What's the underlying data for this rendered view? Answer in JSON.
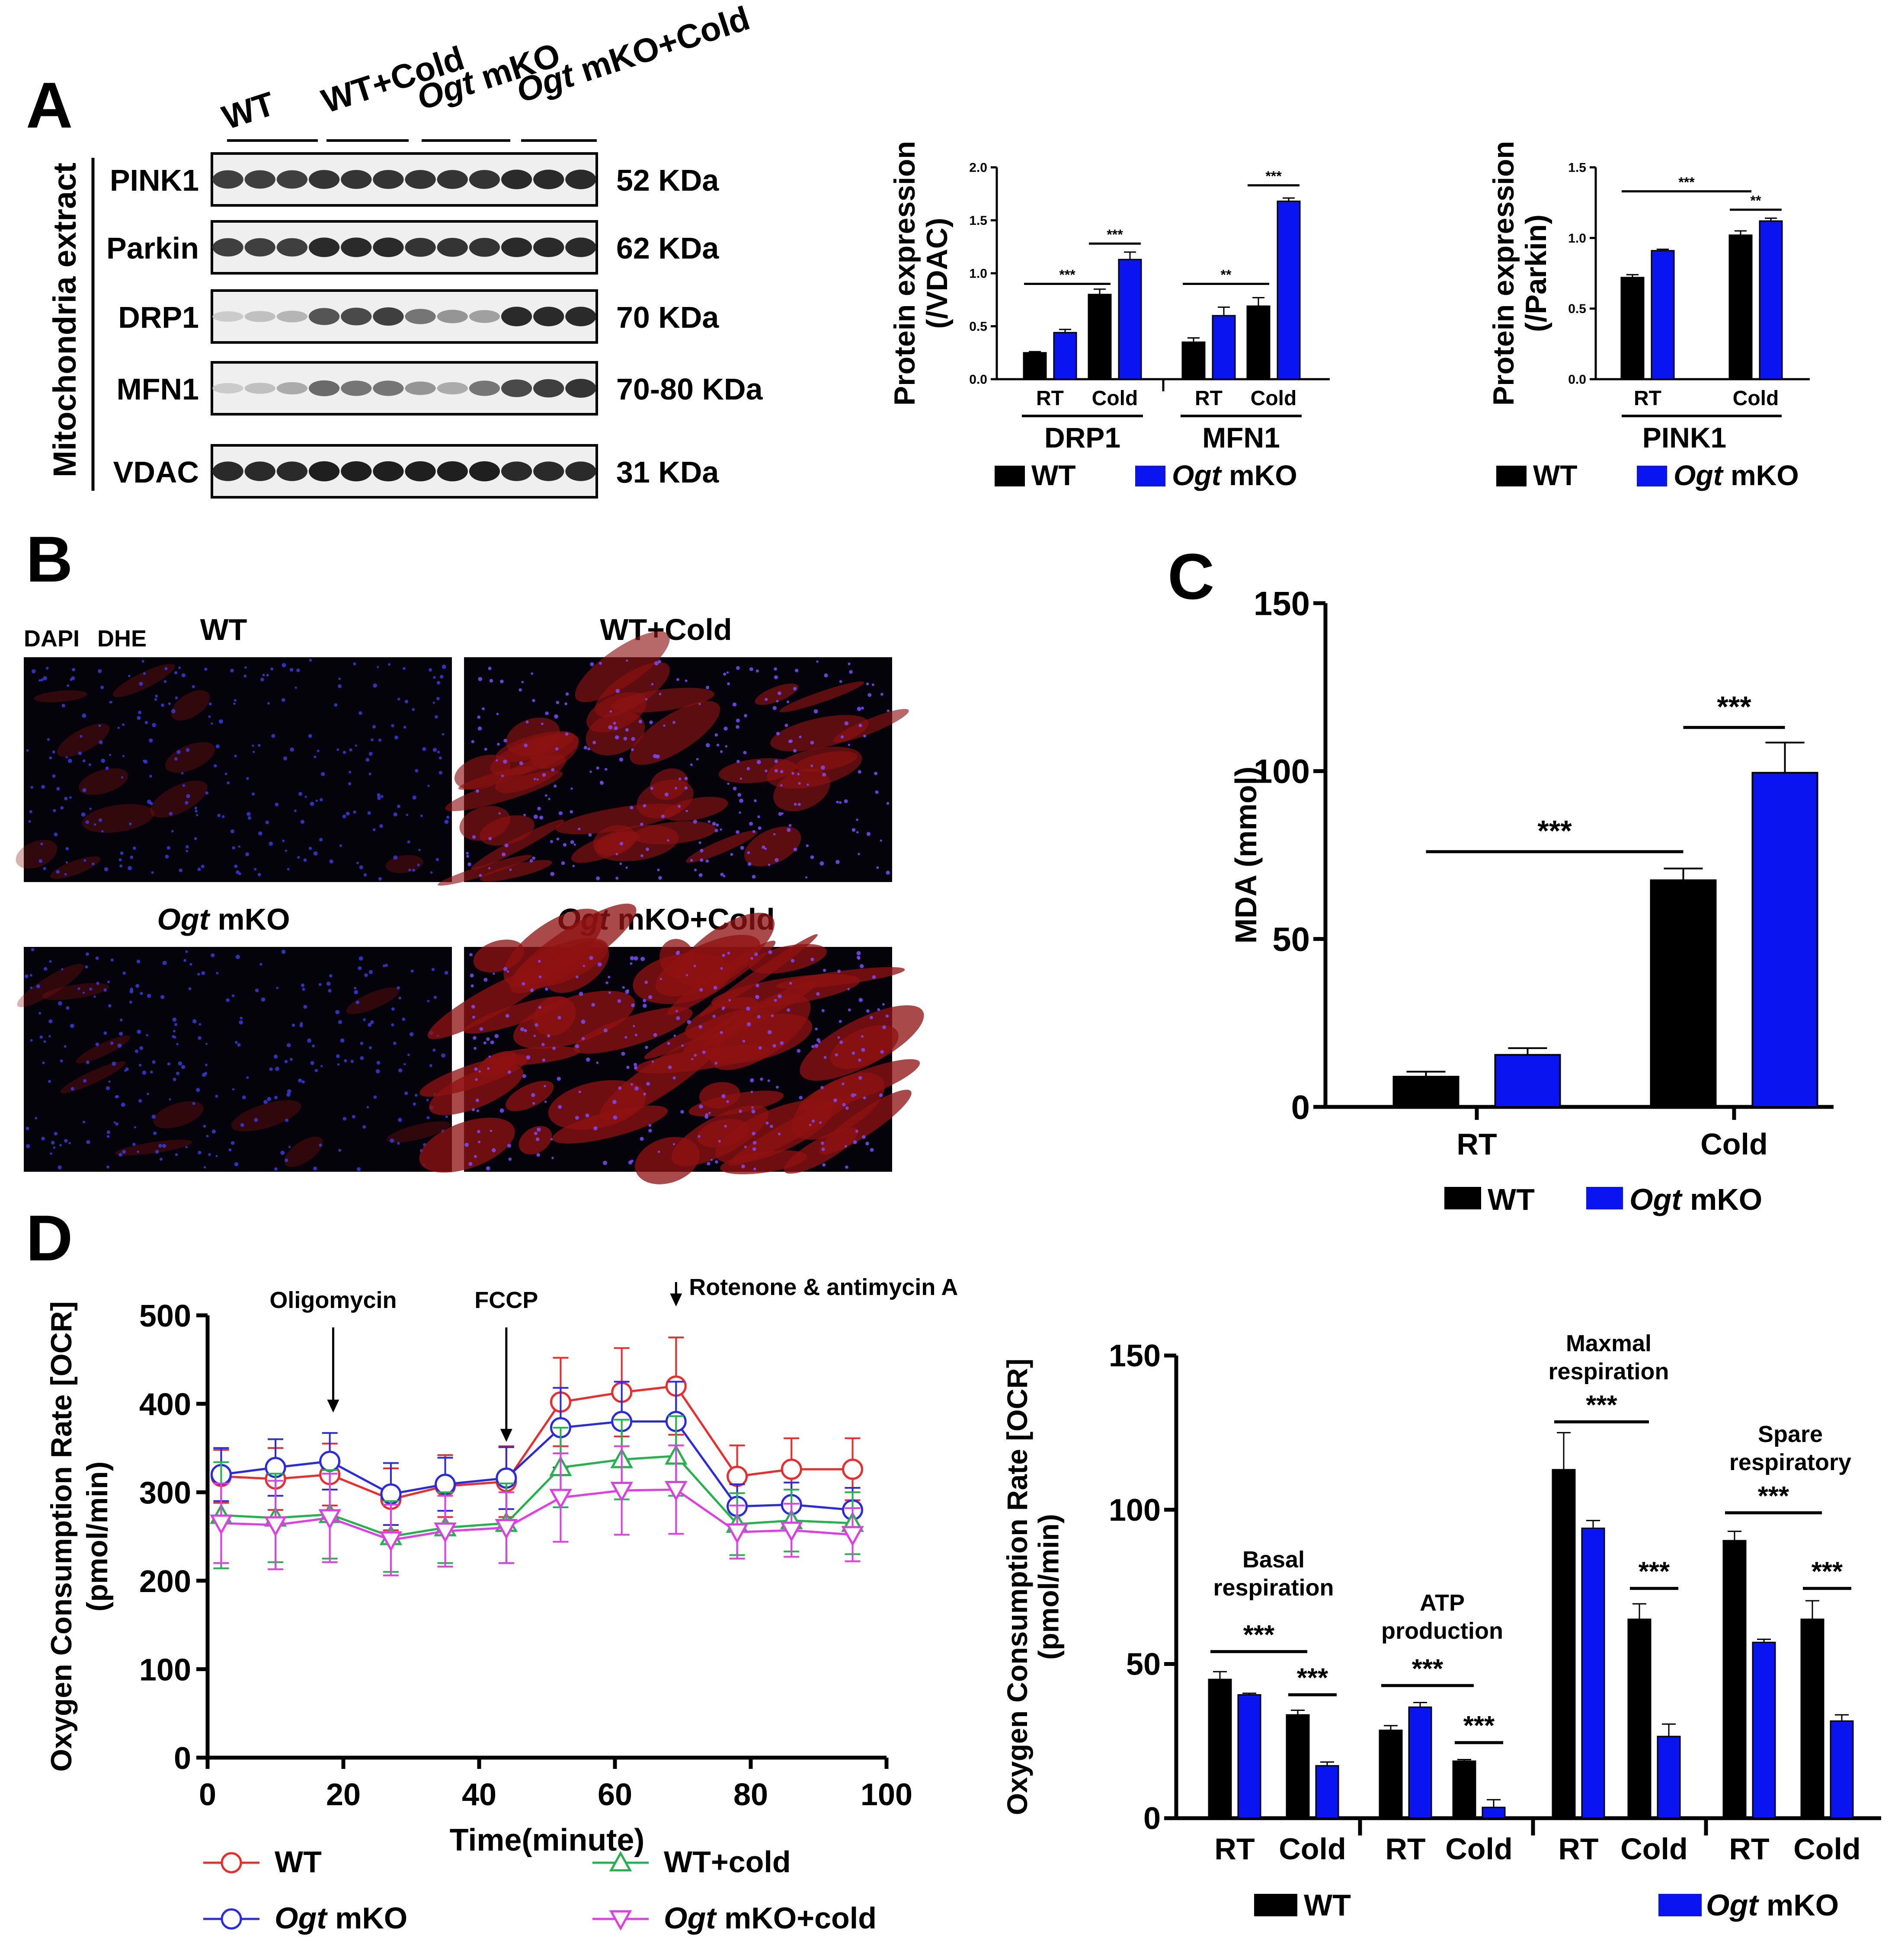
{
  "colors": {
    "wt": "#000000",
    "ko": "#0a14f0",
    "wt_cold": "#22b34a",
    "ko_cold": "#e23be8",
    "wt_line": "#ee2a2a",
    "ko_line": "#2a2ae6",
    "blot_band": "#1a1a1a",
    "blot_bg": "#efefef",
    "micro_blue": "#2222aa",
    "micro_red": "#8f1212"
  },
  "panels": {
    "A": "A",
    "B": "B",
    "C": "C",
    "D": "D"
  },
  "blot": {
    "groups": [
      {
        "pre": "",
        "it": "",
        "post": "WT"
      },
      {
        "pre": "",
        "it": "",
        "post": "WT+Cold"
      },
      {
        "pre": "",
        "it": "Ogt",
        "post": " mKO"
      },
      {
        "pre": "",
        "it": "Ogt",
        "post": " mKO+Cold"
      }
    ],
    "side_label": "Mitochondria extract",
    "rows": [
      {
        "name": "PINK1",
        "size": "52 KDa",
        "intensity": [
          0.8,
          0.8,
          0.8,
          0.85,
          0.85,
          0.85,
          0.85,
          0.85,
          0.85,
          0.9,
          0.9,
          0.9
        ]
      },
      {
        "name": "Parkin",
        "size": "62 KDa",
        "intensity": [
          0.8,
          0.8,
          0.8,
          0.9,
          0.9,
          0.9,
          0.85,
          0.85,
          0.85,
          0.9,
          0.9,
          0.9
        ]
      },
      {
        "name": "DRP1",
        "size": "70 KDa",
        "intensity": [
          0.15,
          0.2,
          0.25,
          0.7,
          0.75,
          0.8,
          0.55,
          0.4,
          0.35,
          0.9,
          0.9,
          0.9
        ]
      },
      {
        "name": "MFN1",
        "size": "70-80 KDa",
        "intensity": [
          0.15,
          0.2,
          0.3,
          0.6,
          0.55,
          0.55,
          0.4,
          0.3,
          0.55,
          0.75,
          0.8,
          0.85
        ]
      },
      {
        "name": "VDAC",
        "size": "31 KDa",
        "intensity": [
          0.9,
          0.9,
          0.9,
          0.95,
          0.95,
          0.95,
          0.95,
          0.95,
          0.95,
          0.9,
          0.9,
          0.9
        ]
      }
    ]
  },
  "legend": {
    "wt": "WT",
    "ko_it": "Ogt",
    "ko_post": " mKO"
  },
  "micro": {
    "stain_dapi": "DAPI",
    "stain_dhe": "DHE",
    "images": [
      {
        "pre": "",
        "it": "",
        "post": "WT",
        "dhe": 0.12
      },
      {
        "pre": "",
        "it": "",
        "post": "WT+Cold",
        "dhe": 0.55
      },
      {
        "pre": "",
        "it": "Ogt",
        "post": " mKO",
        "dhe": 0.1
      },
      {
        "pre": "",
        "it": "Ogt",
        "post": " mKO+Cold",
        "dhe": 0.75
      }
    ]
  },
  "line_legend": [
    {
      "pre": "",
      "it": "",
      "post": "WT",
      "color": "#ee2a2a",
      "marker": "circle"
    },
    {
      "pre": "",
      "it": "",
      "post": "WT+cold",
      "color": "#22b34a",
      "marker": "triangle-up"
    },
    {
      "pre": "",
      "it": "Ogt",
      "post": " mKO",
      "color": "#2a2ae6",
      "marker": "circle"
    },
    {
      "pre": "",
      "it": "Ogt",
      "post": " mKO+cold",
      "color": "#e23be8",
      "marker": "triangle-down"
    }
  ],
  "chart_data": [
    {
      "id": "A_drp1_mfn1",
      "type": "bar",
      "ylabel": "Protein expression",
      "ylabel2": "(/VDAC)",
      "ylim": [
        0,
        2.0
      ],
      "yticks": [
        0.0,
        0.5,
        1.0,
        1.5,
        2.0
      ],
      "ytick_labels": [
        "0.0",
        "0.5",
        "1.0",
        "1.5",
        "2.0"
      ],
      "groups": [
        {
          "label": "DRP1",
          "categories": [
            "RT",
            "Cold"
          ],
          "wt": [
            0.25,
            0.8
          ],
          "ko": [
            0.44,
            1.13
          ],
          "wt_err": [
            0.01,
            0.05
          ],
          "ko_err": [
            0.03,
            0.07
          ]
        },
        {
          "label": "MFN1",
          "categories": [
            "RT",
            "Cold"
          ],
          "wt": [
            0.35,
            0.69
          ],
          "ko": [
            0.6,
            1.68
          ],
          "wt_err": [
            0.04,
            0.08
          ],
          "ko_err": [
            0.08,
            0.03
          ]
        }
      ],
      "significance": [
        {
          "group": 0,
          "from": "wt0",
          "to": "wt1",
          "label": "***",
          "y": 0.9
        },
        {
          "group": 0,
          "from": "wt1",
          "to": "ko1",
          "label": "***",
          "y": 1.28
        },
        {
          "group": 1,
          "from": "wt0",
          "to": "wt1",
          "label": "**",
          "y": 0.9
        },
        {
          "group": 1,
          "from": "wt1",
          "to": "ko1",
          "label": "***",
          "y": 1.83
        }
      ]
    },
    {
      "id": "A_pink1",
      "type": "bar",
      "ylabel": "Protein expression",
      "ylabel2": "(/Parkin)",
      "ylim": [
        0,
        1.5
      ],
      "yticks": [
        0.0,
        0.5,
        1.0,
        1.5
      ],
      "ytick_labels": [
        "0.0",
        "0.5",
        "1.0",
        "1.5"
      ],
      "groups": [
        {
          "label": "PINK1",
          "categories": [
            "RT",
            "Cold"
          ],
          "wt": [
            0.72,
            1.02
          ],
          "ko": [
            0.91,
            1.12
          ],
          "wt_err": [
            0.02,
            0.03
          ],
          "ko_err": [
            0.01,
            0.02
          ]
        }
      ],
      "significance": [
        {
          "group": 0,
          "from": "wt0",
          "to": "wt1",
          "label": "***",
          "y": 1.33
        },
        {
          "group": 0,
          "from": "wt1",
          "to": "ko1",
          "label": "**",
          "y": 1.2
        }
      ]
    },
    {
      "id": "C_mda",
      "type": "bar",
      "ylabel": "MDA (mmol)",
      "ylim": [
        0,
        150
      ],
      "yticks": [
        0,
        50,
        100,
        150
      ],
      "ytick_labels": [
        "0",
        "50",
        "100",
        "150"
      ],
      "categories": [
        "RT",
        "Cold"
      ],
      "wt": [
        9,
        67.5
      ],
      "ko": [
        15.5,
        99.5
      ],
      "wt_err": [
        1.5,
        3.5
      ],
      "ko_err": [
        2.0,
        9.0
      ],
      "significance": [
        {
          "from": "wt0",
          "to": "wt1",
          "label": "***",
          "y": 76
        },
        {
          "from": "wt1",
          "to": "ko1",
          "label": "***",
          "y": 113
        }
      ]
    },
    {
      "id": "D_ocr_time",
      "type": "line",
      "xlabel": "Time(minute)",
      "ylabel": "Oxygen Consumption Rate [OCR]",
      "ylabel2": "(pmol/min)",
      "xlim": [
        0,
        100
      ],
      "ylim": [
        0,
        500
      ],
      "xticks": [
        0,
        20,
        40,
        60,
        80,
        100
      ],
      "yticks": [
        0,
        100,
        200,
        300,
        400,
        500
      ],
      "x": [
        2,
        10,
        18,
        27,
        35,
        44,
        52,
        61,
        69,
        78,
        86,
        95
      ],
      "series": [
        {
          "name": "WT",
          "color": "#ee2a2a",
          "marker": "circle",
          "values": [
            318,
            315,
            320,
            292,
            307,
            312,
            402,
            413,
            420,
            318,
            326,
            326
          ],
          "err": [
            30,
            35,
            35,
            35,
            35,
            40,
            50,
            50,
            55,
            35,
            35,
            35
          ]
        },
        {
          "name": "Ogt mKO",
          "color": "#2a2ae6",
          "marker": "circle",
          "values": [
            320,
            328,
            335,
            298,
            309,
            316,
            373,
            380,
            380,
            284,
            286,
            280
          ],
          "err": [
            30,
            32,
            32,
            35,
            30,
            35,
            45,
            45,
            45,
            25,
            25,
            25
          ]
        },
        {
          "name": "WT+cold",
          "color": "#22b34a",
          "marker": "triangle-up",
          "values": [
            274,
            271,
            275,
            250,
            260,
            265,
            328,
            337,
            341,
            264,
            268,
            265
          ],
          "err": [
            60,
            50,
            50,
            40,
            40,
            45,
            45,
            45,
            45,
            35,
            35,
            35
          ]
        },
        {
          "name": "Ogt mKO+cold",
          "color": "#e23be8",
          "marker": "triangle-down",
          "values": [
            265,
            263,
            271,
            246,
            256,
            260,
            294,
            302,
            303,
            255,
            257,
            252
          ],
          "err": [
            45,
            50,
            50,
            40,
            40,
            40,
            50,
            50,
            50,
            30,
            30,
            30
          ]
        }
      ],
      "annotations": [
        {
          "label": "Oligomycin",
          "x": 18.5
        },
        {
          "label": "FCCP",
          "x": 44
        },
        {
          "label": "Rotenone & antimycin A",
          "x": 69
        }
      ]
    },
    {
      "id": "D_ocr_bars",
      "type": "bar",
      "ylabel": "Oxygen Consumption Rate [OCR]",
      "ylabel2": "(pmol/min)",
      "ylim": [
        0,
        150
      ],
      "yticks": [
        0,
        50,
        100,
        150
      ],
      "ytick_labels": [
        "0",
        "50",
        "100",
        "150"
      ],
      "groups": [
        {
          "label1": "Basal",
          "label2": "respiration",
          "categories": [
            "RT",
            "Cold"
          ],
          "wt": [
            45,
            33.5
          ],
          "ko": [
            40,
            17
          ],
          "wt_err": [
            2.5,
            1.5
          ],
          "ko_err": [
            0.5,
            1.2
          ]
        },
        {
          "label1": "ATP",
          "label2": "production",
          "categories": [
            "RT",
            "Cold"
          ],
          "wt": [
            28.5,
            18.5
          ],
          "ko": [
            36,
            3.5
          ],
          "wt_err": [
            1.5,
            0.5
          ],
          "ko_err": [
            1.5,
            2.5
          ]
        },
        {
          "label1": "Maxmal",
          "label2": "respiration",
          "categories": [
            "RT",
            "Cold"
          ],
          "wt": [
            113,
            64.5
          ],
          "ko": [
            94,
            26.5
          ],
          "wt_err": [
            12,
            5
          ],
          "ko_err": [
            2.5,
            4
          ]
        },
        {
          "label1": "Spare",
          "label2": "respiratory",
          "categories": [
            "RT",
            "Cold"
          ],
          "wt": [
            90,
            64.5
          ],
          "ko": [
            57,
            31.5
          ],
          "wt_err": [
            3,
            6
          ],
          "ko_err": [
            1,
            2
          ]
        }
      ],
      "significance": [
        {
          "group": 0,
          "from": "wt0",
          "to": "wt1",
          "label": "***",
          "y": 54
        },
        {
          "group": 0,
          "from": "wt1",
          "to": "ko1",
          "label": "***",
          "y": 40
        },
        {
          "group": 1,
          "from": "wt0",
          "to": "wt1",
          "label": "***",
          "y": 43
        },
        {
          "group": 1,
          "from": "wt1",
          "to": "ko1",
          "label": "***",
          "y": 24.5
        },
        {
          "group": 2,
          "from": "wt0",
          "to": "wt1",
          "label": "***",
          "y": 128.5
        },
        {
          "group": 2,
          "from": "wt1",
          "to": "ko1",
          "label": "***",
          "y": 74.5
        },
        {
          "group": 3,
          "from": "wt0",
          "to": "wt1",
          "label": "***",
          "y": 99
        },
        {
          "group": 3,
          "from": "wt1",
          "to": "ko1",
          "label": "***",
          "y": 74.5
        }
      ]
    }
  ]
}
